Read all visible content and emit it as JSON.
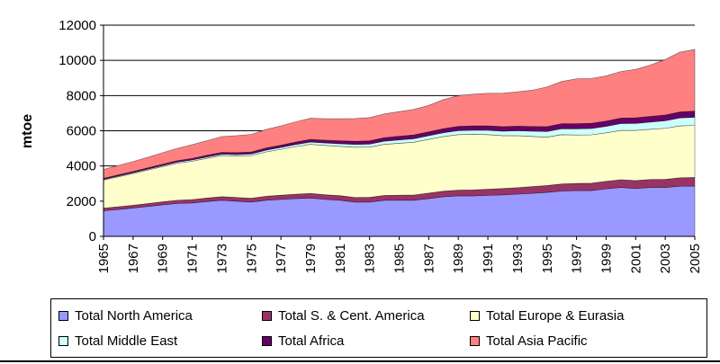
{
  "chart_data": {
    "type": "area",
    "stacked": true,
    "title": "",
    "xlabel": "",
    "ylabel": "mtoe",
    "ylim": [
      0,
      12000
    ],
    "yticks": [
      "0",
      "2000",
      "4000",
      "6000",
      "8000",
      "10000",
      "12000"
    ],
    "xticks": [
      "1965",
      "1967",
      "1969",
      "1971",
      "1973",
      "1975",
      "1977",
      "1979",
      "1981",
      "1983",
      "1985",
      "1987",
      "1989",
      "1991",
      "1993",
      "1995",
      "1997",
      "1999",
      "2001",
      "2003",
      "2005"
    ],
    "grid": true,
    "x": [
      1965,
      1966,
      1967,
      1968,
      1969,
      1970,
      1971,
      1972,
      1973,
      1974,
      1975,
      1976,
      1977,
      1978,
      1979,
      1980,
      1981,
      1982,
      1983,
      1984,
      1985,
      1986,
      1987,
      1988,
      1989,
      1990,
      1991,
      1992,
      1993,
      1994,
      1995,
      1996,
      1997,
      1998,
      1999,
      2000,
      2001,
      2002,
      2003,
      2004,
      2005
    ],
    "series": [
      {
        "name": "Total North America",
        "color": "#9999ff",
        "values": [
          1450,
          1530,
          1610,
          1700,
          1790,
          1870,
          1900,
          1980,
          2050,
          2000,
          1950,
          2050,
          2100,
          2150,
          2180,
          2100,
          2050,
          1950,
          1950,
          2050,
          2050,
          2050,
          2150,
          2250,
          2300,
          2300,
          2330,
          2360,
          2400,
          2450,
          2500,
          2580,
          2600,
          2600,
          2700,
          2780,
          2720,
          2780,
          2780,
          2850,
          2850
        ]
      },
      {
        "name": "Total S. & Cent. America",
        "color": "#993366",
        "values": [
          150,
          155,
          160,
          165,
          175,
          185,
          190,
          200,
          210,
          215,
          220,
          230,
          240,
          250,
          260,
          265,
          265,
          265,
          270,
          280,
          290,
          300,
          310,
          320,
          330,
          340,
          350,
          360,
          370,
          380,
          390,
          400,
          410,
          420,
          430,
          440,
          450,
          455,
          460,
          480,
          500
        ]
      },
      {
        "name": "Total Europe & Eurasia",
        "color": "#ffffcc",
        "values": [
          1600,
          1700,
          1800,
          1900,
          2000,
          2100,
          2180,
          2260,
          2330,
          2350,
          2420,
          2520,
          2600,
          2700,
          2790,
          2800,
          2800,
          2850,
          2850,
          2900,
          2950,
          3000,
          3050,
          3100,
          3150,
          3150,
          3100,
          3000,
          2950,
          2850,
          2750,
          2800,
          2750,
          2750,
          2750,
          2800,
          2850,
          2850,
          2900,
          2950,
          2950
        ]
      },
      {
        "name": "Total Middle East",
        "color": "#ccffff",
        "values": [
          40,
          45,
          50,
          55,
          60,
          65,
          70,
          75,
          80,
          85,
          90,
          100,
          110,
          120,
          130,
          140,
          150,
          160,
          170,
          180,
          190,
          200,
          210,
          220,
          230,
          240,
          250,
          260,
          280,
          300,
          320,
          340,
          350,
          360,
          370,
          390,
          400,
          410,
          430,
          450,
          470
        ]
      },
      {
        "name": "Total Africa",
        "color": "#660066",
        "values": [
          60,
          65,
          70,
          75,
          80,
          85,
          90,
          100,
          105,
          110,
          115,
          125,
          130,
          140,
          150,
          160,
          170,
          180,
          190,
          200,
          210,
          215,
          220,
          230,
          240,
          250,
          250,
          255,
          260,
          265,
          275,
          285,
          290,
          295,
          300,
          310,
          320,
          325,
          330,
          340,
          350
        ]
      },
      {
        "name": "Total Asia Pacific",
        "color": "#ff8080",
        "values": [
          500,
          540,
          560,
          600,
          650,
          700,
          780,
          820,
          900,
          960,
          1000,
          1050,
          1100,
          1150,
          1200,
          1220,
          1250,
          1290,
          1320,
          1350,
          1400,
          1450,
          1500,
          1650,
          1750,
          1800,
          1850,
          1900,
          1950,
          2060,
          2250,
          2400,
          2550,
          2550,
          2570,
          2650,
          2750,
          2920,
          3150,
          3400,
          3500
        ]
      }
    ]
  }
}
